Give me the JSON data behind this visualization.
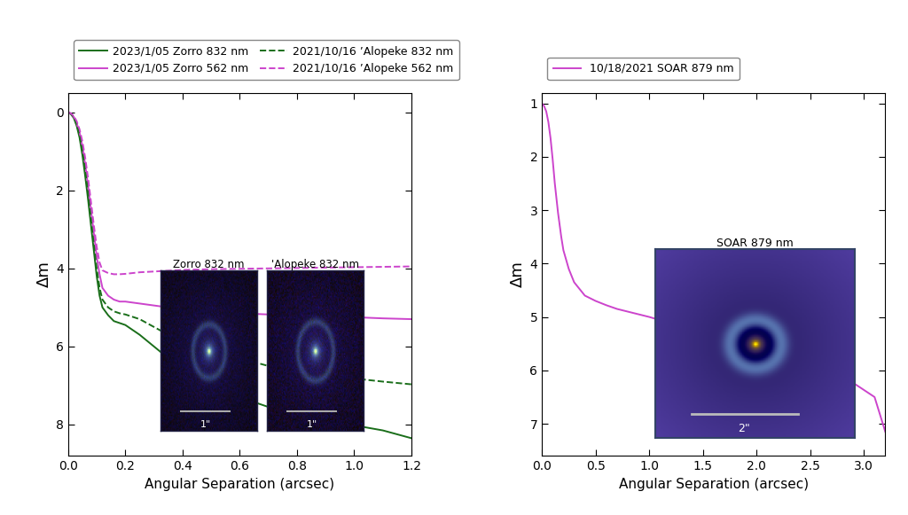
{
  "background_color": "#ffffff",
  "left_plot": {
    "xlabel": "Angular Separation (arcsec)",
    "ylabel": "Δm",
    "xlim": [
      0.0,
      1.2
    ],
    "ylim": [
      8.8,
      -0.5
    ],
    "xticks": [
      0.0,
      0.2,
      0.4,
      0.6,
      0.8,
      1.0,
      1.2
    ],
    "yticks": [
      0,
      2,
      4,
      6,
      8
    ],
    "series": [
      {
        "label": "2023/1/05 Zorro 832 nm",
        "color": "#1a6e1a",
        "linestyle": "solid",
        "x": [
          0.0,
          0.01,
          0.02,
          0.03,
          0.04,
          0.05,
          0.06,
          0.07,
          0.08,
          0.09,
          0.1,
          0.11,
          0.12,
          0.14,
          0.16,
          0.18,
          0.2,
          0.25,
          0.3,
          0.35,
          0.4,
          0.5,
          0.6,
          0.7,
          0.8,
          0.9,
          1.0,
          1.1,
          1.2
        ],
        "y": [
          0.0,
          0.05,
          0.15,
          0.35,
          0.65,
          1.1,
          1.65,
          2.25,
          2.9,
          3.55,
          4.2,
          4.7,
          5.0,
          5.2,
          5.35,
          5.4,
          5.45,
          5.7,
          6.0,
          6.3,
          6.55,
          7.0,
          7.3,
          7.55,
          7.75,
          7.9,
          8.02,
          8.15,
          8.35
        ]
      },
      {
        "label": "2023/1/05 Zorro 562 nm",
        "color": "#cc44cc",
        "linestyle": "solid",
        "x": [
          0.0,
          0.01,
          0.02,
          0.03,
          0.04,
          0.05,
          0.06,
          0.07,
          0.08,
          0.09,
          0.1,
          0.11,
          0.12,
          0.14,
          0.16,
          0.18,
          0.2,
          0.25,
          0.3,
          0.35,
          0.4,
          0.5,
          0.6,
          0.7,
          0.8,
          0.9,
          1.0,
          1.1,
          1.2
        ],
        "y": [
          0.0,
          0.04,
          0.12,
          0.28,
          0.52,
          0.88,
          1.35,
          1.9,
          2.5,
          3.1,
          3.7,
          4.15,
          4.5,
          4.7,
          4.8,
          4.85,
          4.85,
          4.9,
          4.95,
          5.0,
          5.05,
          5.1,
          5.15,
          5.18,
          5.2,
          5.22,
          5.25,
          5.28,
          5.3
        ]
      },
      {
        "label": "2021/10/16 ’Alopeke 832 nm",
        "color": "#1a6e1a",
        "linestyle": "dashed",
        "x": [
          0.0,
          0.01,
          0.02,
          0.03,
          0.04,
          0.05,
          0.06,
          0.07,
          0.08,
          0.09,
          0.1,
          0.11,
          0.12,
          0.14,
          0.16,
          0.18,
          0.2,
          0.25,
          0.3,
          0.35,
          0.4,
          0.5,
          0.6,
          0.7,
          0.8,
          0.9,
          1.0,
          1.1,
          1.2
        ],
        "y": [
          0.0,
          0.04,
          0.13,
          0.3,
          0.58,
          0.98,
          1.5,
          2.1,
          2.75,
          3.4,
          4.0,
          4.5,
          4.8,
          5.0,
          5.1,
          5.15,
          5.18,
          5.3,
          5.5,
          5.7,
          5.85,
          6.1,
          6.3,
          6.5,
          6.65,
          6.75,
          6.82,
          6.9,
          6.97
        ]
      },
      {
        "label": "2021/10/16 ’Alopeke 562 nm",
        "color": "#cc44cc",
        "linestyle": "dashed",
        "x": [
          0.0,
          0.01,
          0.02,
          0.03,
          0.04,
          0.05,
          0.06,
          0.07,
          0.08,
          0.09,
          0.1,
          0.11,
          0.12,
          0.14,
          0.16,
          0.18,
          0.2,
          0.25,
          0.3,
          0.35,
          0.4,
          0.5,
          0.6,
          0.7,
          0.8,
          0.9,
          1.0,
          1.1,
          1.2
        ],
        "y": [
          0.0,
          0.03,
          0.1,
          0.23,
          0.44,
          0.75,
          1.18,
          1.7,
          2.3,
          2.9,
          3.45,
          3.85,
          4.05,
          4.12,
          4.15,
          4.15,
          4.14,
          4.1,
          4.08,
          4.06,
          4.04,
          4.02,
          4.01,
          4.0,
          3.99,
          3.98,
          3.97,
          3.96,
          3.95
        ]
      }
    ],
    "inset1_title": "Zorro 832 nm",
    "inset2_title": "'Alopeke 832 nm",
    "inset1_scale": "1\"",
    "inset2_scale": "1\""
  },
  "right_plot": {
    "xlabel": "Angular Separation (arcsec)",
    "ylabel": "Δm",
    "xlim": [
      0.0,
      3.2
    ],
    "ylim": [
      7.6,
      0.8
    ],
    "xticks": [
      0.0,
      0.5,
      1.0,
      1.5,
      2.0,
      2.5,
      3.0
    ],
    "yticks": [
      1,
      2,
      3,
      4,
      5,
      6,
      7
    ],
    "series": [
      {
        "label": "10/18/2021 SOAR 879 nm",
        "color": "#cc44cc",
        "linestyle": "solid",
        "x": [
          0.0,
          0.02,
          0.04,
          0.06,
          0.08,
          0.1,
          0.12,
          0.15,
          0.18,
          0.2,
          0.25,
          0.3,
          0.4,
          0.5,
          0.6,
          0.7,
          0.8,
          1.0,
          1.2,
          1.5,
          1.8,
          2.0,
          2.2,
          2.5,
          2.8,
          3.1,
          3.2
        ],
        "y": [
          1.0,
          1.05,
          1.15,
          1.35,
          1.65,
          2.05,
          2.5,
          3.05,
          3.5,
          3.75,
          4.1,
          4.35,
          4.6,
          4.7,
          4.78,
          4.85,
          4.9,
          5.0,
          5.12,
          5.28,
          5.45,
          5.55,
          5.68,
          5.88,
          6.1,
          6.5,
          7.15
        ]
      }
    ],
    "inset_title": "SOAR 879 nm",
    "inset_scale": "2\""
  }
}
